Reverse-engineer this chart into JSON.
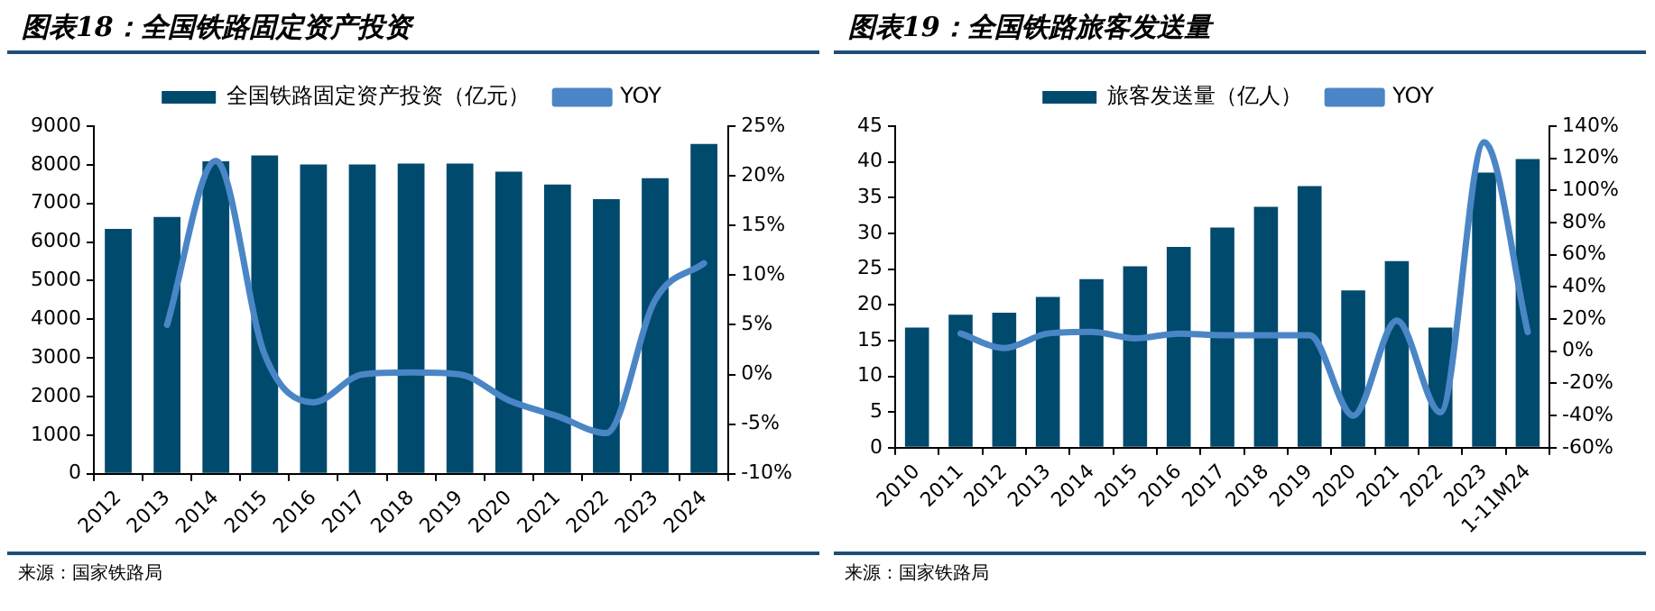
{
  "chart_data": [
    {
      "type": "bar",
      "title": "图表18：全国铁路固定资产投资",
      "categories": [
        "2012",
        "2013",
        "2014",
        "2015",
        "2016",
        "2017",
        "2018",
        "2019",
        "2020",
        "2021",
        "2022",
        "2023",
        "2024"
      ],
      "series": [
        {
          "name": "全国铁路固定资产投资（亿元）",
          "color": "#004a6e",
          "values": [
            6340,
            6650,
            8090,
            8240,
            8010,
            8010,
            8030,
            8030,
            7820,
            7490,
            7110,
            7650,
            8540
          ]
        },
        {
          "name": "YOY",
          "type": "line",
          "axis": "y2",
          "color": "#4a86c6",
          "values": [
            null,
            5,
            21.5,
            2,
            -2.8,
            0,
            0.2,
            0,
            -2.6,
            -4.2,
            -5.9,
            7.5,
            11.2
          ]
        }
      ],
      "ylim": [
        0,
        9000
      ],
      "yticks": [
        0,
        1000,
        2000,
        3000,
        4000,
        5000,
        6000,
        7000,
        8000,
        9000
      ],
      "y2lim": [
        -10,
        25
      ],
      "y2ticks": [
        {
          "value": -10,
          "label": "-10%"
        },
        {
          "value": -5,
          "label": "-5%"
        },
        {
          "value": 0,
          "label": "0%"
        },
        {
          "value": 5,
          "label": "5%"
        },
        {
          "value": 10,
          "label": "10%"
        },
        {
          "value": 15,
          "label": "15%"
        },
        {
          "value": 20,
          "label": "20%"
        },
        {
          "value": 25,
          "label": "25%"
        }
      ],
      "legend": "top",
      "grid": false,
      "annotations": [
        "来源：国家铁路局"
      ]
    },
    {
      "type": "bar",
      "title": "图表19：全国铁路旅客发送量",
      "categories": [
        "2010",
        "2011",
        "2012",
        "2013",
        "2014",
        "2015",
        "2016",
        "2017",
        "2018",
        "2019",
        "2020",
        "2021",
        "2022",
        "2023",
        "1-11M24"
      ],
      "series": [
        {
          "name": "旅客发送量（亿人）",
          "color": "#004a6e",
          "values": [
            16.8,
            18.6,
            18.9,
            21.1,
            23.6,
            25.4,
            28.1,
            30.8,
            33.7,
            36.6,
            22.0,
            26.1,
            16.8,
            38.5,
            40.4
          ]
        },
        {
          "name": "YOY",
          "type": "line",
          "axis": "y2",
          "color": "#4a86c6",
          "values": [
            null,
            11,
            2,
            11,
            12,
            8,
            11,
            10,
            10,
            10,
            -40,
            19,
            -38,
            130,
            12
          ]
        }
      ],
      "ylim": [
        0,
        45
      ],
      "yticks": [
        0,
        5,
        10,
        15,
        20,
        25,
        30,
        35,
        40,
        45
      ],
      "y2lim": [
        -60,
        140
      ],
      "y2ticks": [
        {
          "value": -60,
          "label": "-60%"
        },
        {
          "value": -40,
          "label": "-40%"
        },
        {
          "value": -20,
          "label": "-20%"
        },
        {
          "value": 0,
          "label": "0%"
        },
        {
          "value": 20,
          "label": "20%"
        },
        {
          "value": 40,
          "label": "40%"
        },
        {
          "value": 60,
          "label": "60%"
        },
        {
          "value": 80,
          "label": "80%"
        },
        {
          "value": 100,
          "label": "100%"
        },
        {
          "value": 120,
          "label": "120%"
        },
        {
          "value": 140,
          "label": "140%"
        }
      ],
      "legend": "top",
      "grid": false,
      "annotations": [
        "来源：国家铁路局"
      ]
    }
  ]
}
